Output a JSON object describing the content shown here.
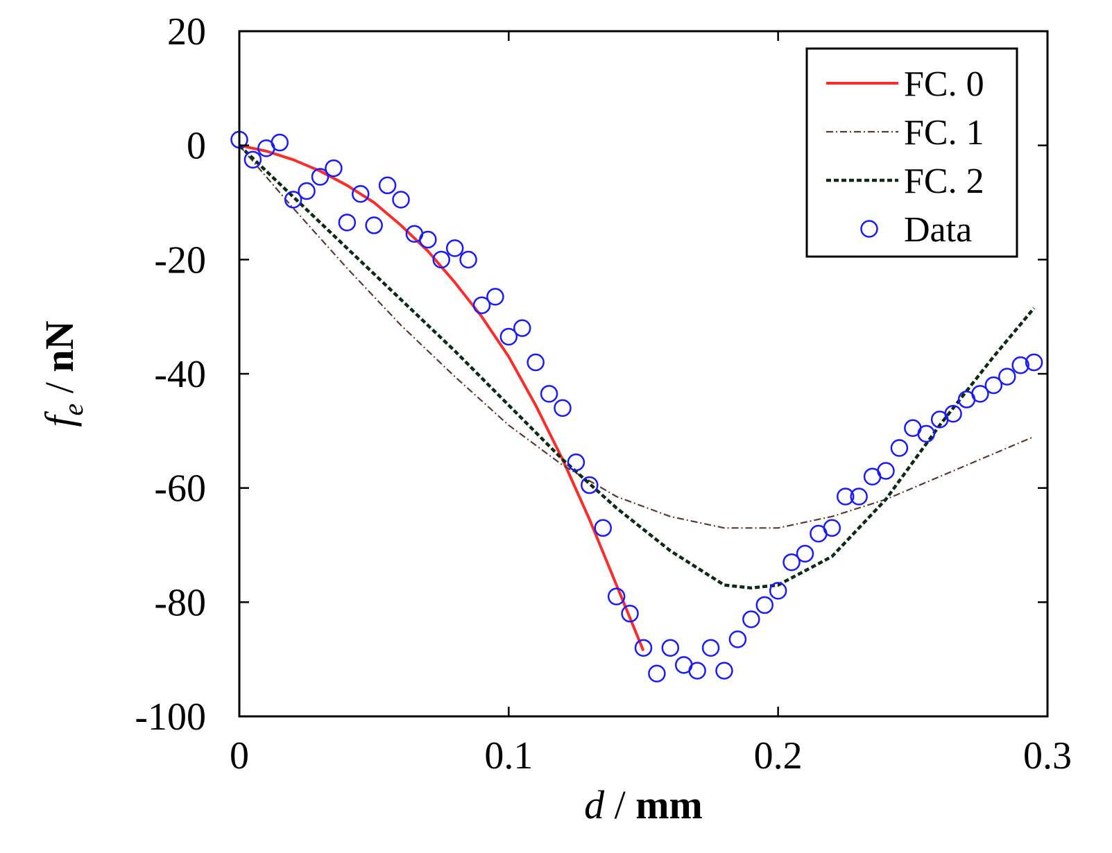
{
  "chart_data": {
    "type": "line",
    "title": "",
    "xlabel": {
      "var": "d",
      "sep": " / ",
      "unit": "mm"
    },
    "ylabel": {
      "var": "f",
      "sub": "e",
      "sep": " / ",
      "unit": "nN"
    },
    "xlim": [
      0,
      0.3
    ],
    "ylim": [
      -100,
      20
    ],
    "xticks": [
      0,
      0.1,
      0.2,
      0.3
    ],
    "xtick_labels": [
      "0",
      "0.1",
      "0.2",
      "0.3"
    ],
    "yticks": [
      20,
      0,
      -20,
      -40,
      -60,
      -80,
      -100
    ],
    "ytick_labels": [
      "20",
      "0",
      "-20",
      "-40",
      "-60",
      "-80",
      "-100"
    ],
    "grid": false,
    "legend_position": "top-right",
    "series": [
      {
        "name": "FC. 0",
        "style": "solid",
        "color": "#ff2a2a",
        "x": [
          0,
          0.01,
          0.02,
          0.03,
          0.04,
          0.05,
          0.06,
          0.07,
          0.08,
          0.09,
          0.1,
          0.11,
          0.12,
          0.13,
          0.14,
          0.15
        ],
        "y": [
          0,
          -1,
          -2.5,
          -4.5,
          -7,
          -10,
          -14,
          -18.5,
          -24,
          -30,
          -37,
          -45.5,
          -55,
          -65.5,
          -77,
          -88.5
        ]
      },
      {
        "name": "FC. 1",
        "style": "dashdot",
        "color": "#5a3b32",
        "x": [
          0,
          0.02,
          0.04,
          0.06,
          0.08,
          0.1,
          0.12,
          0.14,
          0.16,
          0.18,
          0.2,
          0.22,
          0.24,
          0.26,
          0.28,
          0.295
        ],
        "y": [
          0,
          -11,
          -21.5,
          -31.5,
          -40.5,
          -49,
          -56,
          -61.5,
          -65,
          -67,
          -67,
          -65,
          -62,
          -58,
          -54,
          -51
        ]
      },
      {
        "name": "FC. 2",
        "style": "dashed",
        "color": "#0c2a14",
        "x": [
          0,
          0.02,
          0.04,
          0.06,
          0.08,
          0.1,
          0.12,
          0.14,
          0.16,
          0.18,
          0.19,
          0.2,
          0.22,
          0.24,
          0.26,
          0.28,
          0.295
        ],
        "y": [
          0,
          -9,
          -18,
          -27,
          -36,
          -45.5,
          -55,
          -63.5,
          -71,
          -77,
          -77.5,
          -77,
          -72,
          -62,
          -49,
          -37,
          -28.5
        ]
      },
      {
        "name": "Data",
        "style": "markers",
        "color": "#1a1aff",
        "x": [
          0,
          0.005,
          0.01,
          0.015,
          0.02,
          0.025,
          0.03,
          0.035,
          0.04,
          0.045,
          0.05,
          0.055,
          0.06,
          0.065,
          0.07,
          0.075,
          0.08,
          0.085,
          0.09,
          0.095,
          0.1,
          0.105,
          0.11,
          0.115,
          0.12,
          0.125,
          0.13,
          0.135,
          0.14,
          0.145,
          0.15,
          0.155,
          0.16,
          0.165,
          0.17,
          0.175,
          0.18,
          0.185,
          0.19,
          0.195,
          0.2,
          0.205,
          0.21,
          0.215,
          0.22,
          0.225,
          0.23,
          0.235,
          0.24,
          0.245,
          0.25,
          0.255,
          0.26,
          0.265,
          0.27,
          0.275,
          0.28,
          0.285,
          0.29,
          0.295
        ],
        "y": [
          1,
          -2.5,
          -0.5,
          0.5,
          -9.5,
          -8,
          -5.5,
          -4,
          -13.5,
          -8.5,
          -14,
          -7,
          -9.5,
          -15.5,
          -16.5,
          -20,
          -18,
          -20,
          -28,
          -26.5,
          -33.5,
          -32,
          -38,
          -43.5,
          -46,
          -55.5,
          -59.5,
          -67,
          -79,
          -82,
          -88,
          -92.5,
          -88,
          -91,
          -92,
          -88,
          -92,
          -86.5,
          -83,
          -80.5,
          -78,
          -73,
          -71.5,
          -68,
          -67,
          -61.5,
          -61.5,
          -58,
          -57,
          -53,
          -49.5,
          -50.5,
          -48,
          -47,
          -44.5,
          -43.5,
          -42,
          -40.5,
          -38.5,
          -38
        ]
      }
    ]
  }
}
